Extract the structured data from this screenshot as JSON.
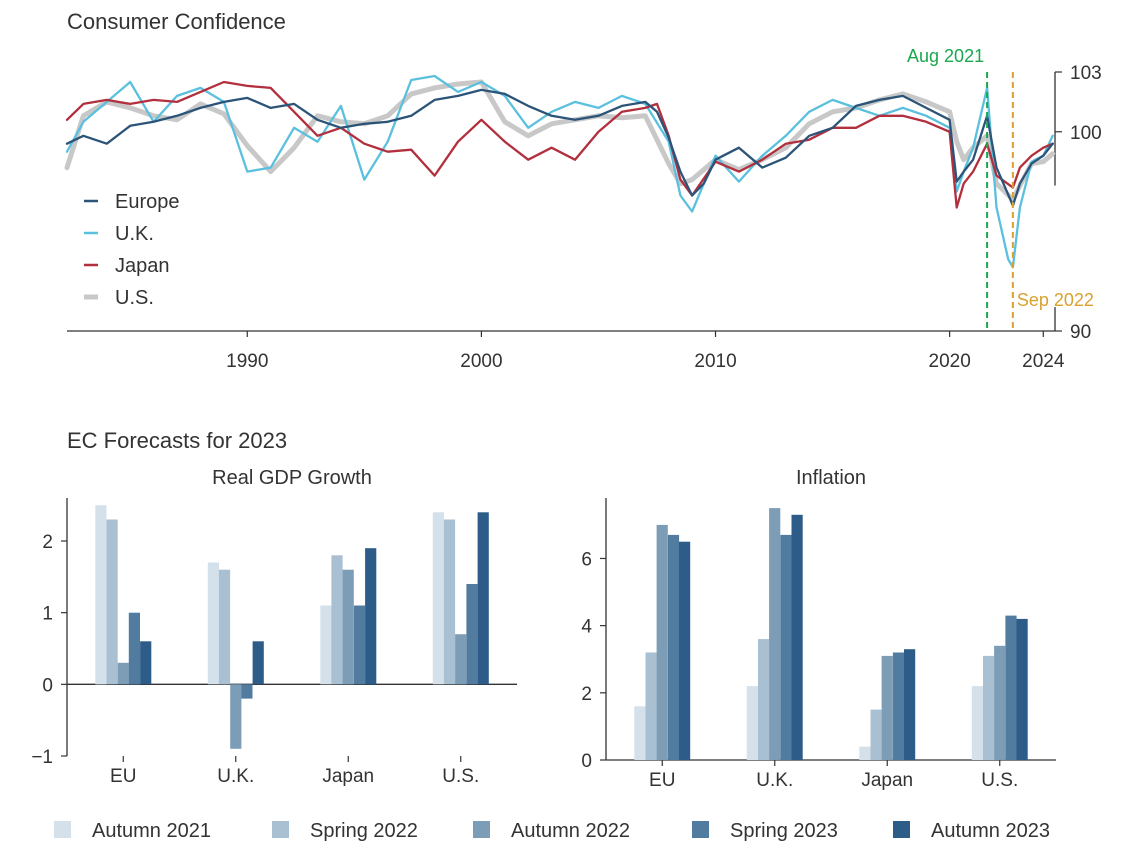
{
  "top_title": "Consumer Confidence",
  "bottom_title": "EC Forecasts for 2023",
  "chart_data": [
    {
      "type": "line",
      "title": "Consumer Confidence",
      "xlim": [
        1982.3,
        2024.5
      ],
      "ylim": [
        90,
        103
      ],
      "x_ticks": [
        "1990",
        "2000",
        "2010",
        "2020",
        "2024"
      ],
      "y_ticks": [
        "90",
        "100",
        "103"
      ],
      "legend_position": "left",
      "annotations": [
        {
          "label": "Aug 2021",
          "x": 2021.6,
          "color": "#1aa74e"
        },
        {
          "label": "Sep 2022",
          "x": 2022.7,
          "color": "#d9a22f"
        }
      ],
      "series": [
        {
          "name": "Europe",
          "color": "#2b5478",
          "x": [
            1982.3,
            1983,
            1984,
            1985,
            1986,
            1987,
            1988,
            1989,
            1990,
            1991,
            1992,
            1993,
            1994,
            1995,
            1996,
            1997,
            1998,
            1999,
            2000,
            2001,
            2002,
            2003,
            2004,
            2005,
            2006,
            2007,
            2007.5,
            2008,
            2008.5,
            2009,
            2009.5,
            2010,
            2011,
            2012,
            2013,
            2014,
            2015,
            2016,
            2017,
            2018,
            2019,
            2020,
            2020.3,
            2020.6,
            2021,
            2021.6,
            2022,
            2022.7,
            2023,
            2023.5,
            2024,
            2024.4
          ],
          "y": [
            99.4,
            99.8,
            99.4,
            100.3,
            100.5,
            100.8,
            101.2,
            101.5,
            101.7,
            101.2,
            101.4,
            100.6,
            100.2,
            100.4,
            100.5,
            100.8,
            101.6,
            101.8,
            102.1,
            101.9,
            101.3,
            100.8,
            100.6,
            100.8,
            101.3,
            101.5,
            101.0,
            99.7,
            98.0,
            96.8,
            97.4,
            98.6,
            99.2,
            98.2,
            98.7,
            99.8,
            100.2,
            101.3,
            101.6,
            101.8,
            101.2,
            100.6,
            97.5,
            98.0,
            98.6,
            100.8,
            98.2,
            96.3,
            97.4,
            98.4,
            98.8,
            99.4
          ]
        },
        {
          "name": "U.K.",
          "color": "#5bc0de",
          "x": [
            1982.3,
            1983,
            1984,
            1985,
            1986,
            1987,
            1988,
            1989,
            1990,
            1991,
            1992,
            1993,
            1994,
            1995,
            1996,
            1997,
            1998,
            1999,
            2000,
            2001,
            2002,
            2003,
            2004,
            2005,
            2006,
            2007,
            2008,
            2008.5,
            2009,
            2010,
            2011,
            2012,
            2013,
            2014,
            2015,
            2016,
            2017,
            2018,
            2019,
            2020,
            2020.3,
            2020.6,
            2021,
            2021.6,
            2022,
            2022.5,
            2022.7,
            2023,
            2023.5,
            2024,
            2024.4
          ],
          "y": [
            99.0,
            100.5,
            101.5,
            102.5,
            100.5,
            101.8,
            102.2,
            101.5,
            98.0,
            98.2,
            100.2,
            99.5,
            101.3,
            97.6,
            99.5,
            102.6,
            102.8,
            102.0,
            102.5,
            101.8,
            100.2,
            101.0,
            101.5,
            101.2,
            101.8,
            101.4,
            99.5,
            96.8,
            96.0,
            98.8,
            97.5,
            98.8,
            99.8,
            101.0,
            101.6,
            101.2,
            100.8,
            101.2,
            100.8,
            100.2,
            97.0,
            98.0,
            99.2,
            102.2,
            96.2,
            93.6,
            93.2,
            96.2,
            98.5,
            98.8,
            99.8
          ]
        },
        {
          "name": "Japan",
          "color": "#b22f3d",
          "x": [
            1982.3,
            1983,
            1984,
            1985,
            1986,
            1987,
            1988,
            1989,
            1990,
            1991,
            1992,
            1993,
            1994,
            1995,
            1996,
            1997,
            1998,
            1999,
            2000,
            2001,
            2002,
            2003,
            2004,
            2005,
            2006,
            2007,
            2007.5,
            2008,
            2008.5,
            2009,
            2010,
            2011,
            2012,
            2013,
            2014,
            2015,
            2016,
            2017,
            2018,
            2019,
            2020,
            2020.3,
            2020.6,
            2021,
            2021.6,
            2022,
            2022.7,
            2023,
            2023.5,
            2024,
            2024.4
          ],
          "y": [
            100.6,
            101.4,
            101.6,
            101.4,
            101.6,
            101.5,
            102.0,
            102.5,
            102.3,
            102.2,
            101.0,
            99.8,
            100.2,
            99.4,
            99.0,
            99.1,
            97.8,
            99.5,
            100.6,
            99.5,
            98.6,
            99.2,
            98.6,
            100.0,
            101.0,
            101.2,
            101.4,
            99.8,
            97.6,
            96.8,
            98.5,
            98.0,
            98.6,
            99.4,
            99.6,
            100.2,
            100.2,
            100.8,
            100.8,
            100.5,
            100.0,
            96.2,
            97.4,
            98.0,
            99.4,
            97.8,
            97.2,
            98.2,
            98.8,
            99.2,
            99.4
          ]
        },
        {
          "name": "U.S.",
          "color": "#c8c8c8",
          "x": [
            1982.3,
            1983,
            1984,
            1985,
            1986,
            1987,
            1988,
            1989,
            1990,
            1991,
            1992,
            1993,
            1994,
            1995,
            1996,
            1997,
            1998,
            1999,
            2000,
            2001,
            2002,
            2003,
            2004,
            2005,
            2006,
            2007,
            2008,
            2008.5,
            2009,
            2010,
            2011,
            2012,
            2013,
            2014,
            2015,
            2016,
            2017,
            2018,
            2019,
            2020,
            2020.3,
            2020.6,
            2021,
            2021.6,
            2022,
            2022.7,
            2023,
            2023.5,
            2024,
            2024.4
          ],
          "y": [
            98.2,
            100.8,
            101.5,
            101.2,
            100.8,
            100.6,
            101.4,
            100.9,
            99.3,
            98.0,
            99.2,
            100.8,
            100.5,
            100.4,
            100.8,
            101.9,
            102.2,
            102.4,
            102.5,
            100.5,
            99.8,
            100.4,
            100.6,
            100.8,
            100.7,
            100.8,
            98.4,
            97.4,
            97.6,
            98.6,
            98.1,
            98.6,
            99.2,
            100.4,
            101.0,
            101.2,
            101.6,
            101.9,
            101.5,
            101.0,
            99.5,
            98.6,
            99.2,
            99.8,
            97.4,
            96.6,
            97.3,
            98.4,
            98.5,
            98.9
          ]
        }
      ]
    },
    {
      "type": "bar",
      "title": "Real GDP Growth",
      "categories": [
        "EU",
        "U.K.",
        "Japan",
        "U.S."
      ],
      "ylim": [
        -1,
        2.6
      ],
      "y_ticks": [
        "−1",
        "0",
        "1",
        "2"
      ],
      "series": [
        {
          "name": "Autumn 2021",
          "color": "#d5e1ea",
          "values": [
            2.5,
            1.7,
            1.1,
            2.4
          ]
        },
        {
          "name": "Spring 2022",
          "color": "#a9bfd2",
          "values": [
            2.3,
            1.6,
            1.8,
            2.3
          ]
        },
        {
          "name": "Autumn 2022",
          "color": "#7d9db7",
          "values": [
            0.3,
            -0.9,
            1.6,
            0.7
          ]
        },
        {
          "name": "Spring 2023",
          "color": "#517ca0",
          "values": [
            1.0,
            -0.2,
            1.1,
            1.4
          ]
        },
        {
          "name": "Autumn 2023",
          "color": "#2d5c88",
          "values": [
            0.6,
            0.6,
            1.9,
            2.4
          ]
        }
      ]
    },
    {
      "type": "bar",
      "title": "Inflation",
      "categories": [
        "EU",
        "U.K.",
        "Japan",
        "U.S."
      ],
      "ylim": [
        0,
        7.8
      ],
      "y_ticks": [
        "0",
        "2",
        "4",
        "6"
      ],
      "series": [
        {
          "name": "Autumn 2021",
          "color": "#d5e1ea",
          "values": [
            1.6,
            2.2,
            0.4,
            2.2
          ]
        },
        {
          "name": "Spring 2022",
          "color": "#a9bfd2",
          "values": [
            3.2,
            3.6,
            1.5,
            3.1
          ]
        },
        {
          "name": "Autumn 2022",
          "color": "#7d9db7",
          "values": [
            7.0,
            7.5,
            3.1,
            3.4
          ]
        },
        {
          "name": "Spring 2023",
          "color": "#517ca0",
          "values": [
            6.7,
            6.7,
            3.2,
            4.3
          ]
        },
        {
          "name": "Autumn 2023",
          "color": "#2d5c88",
          "values": [
            6.5,
            7.3,
            3.3,
            4.2
          ]
        }
      ]
    }
  ]
}
